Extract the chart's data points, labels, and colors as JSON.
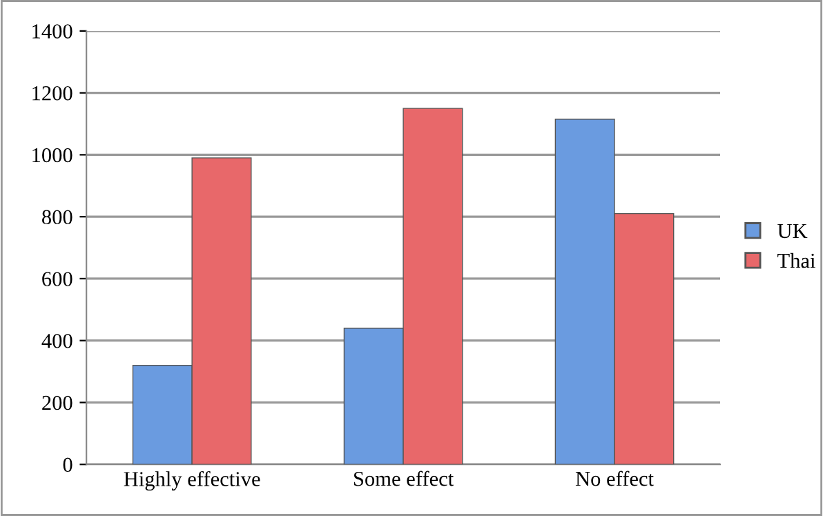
{
  "chart_data": {
    "type": "bar",
    "categories": [
      "Highly effective",
      "Some effect",
      "No effect"
    ],
    "series": [
      {
        "name": "UK",
        "color": "#6a9be0",
        "values": [
          320,
          440,
          1115
        ]
      },
      {
        "name": "Thai",
        "color": "#e8686a",
        "values": [
          990,
          1150,
          810
        ]
      }
    ],
    "ylim": [
      0,
      1400
    ],
    "yticks": [
      0,
      200,
      400,
      600,
      800,
      1000,
      1200,
      1400
    ],
    "grid": "y",
    "legend": "right"
  }
}
